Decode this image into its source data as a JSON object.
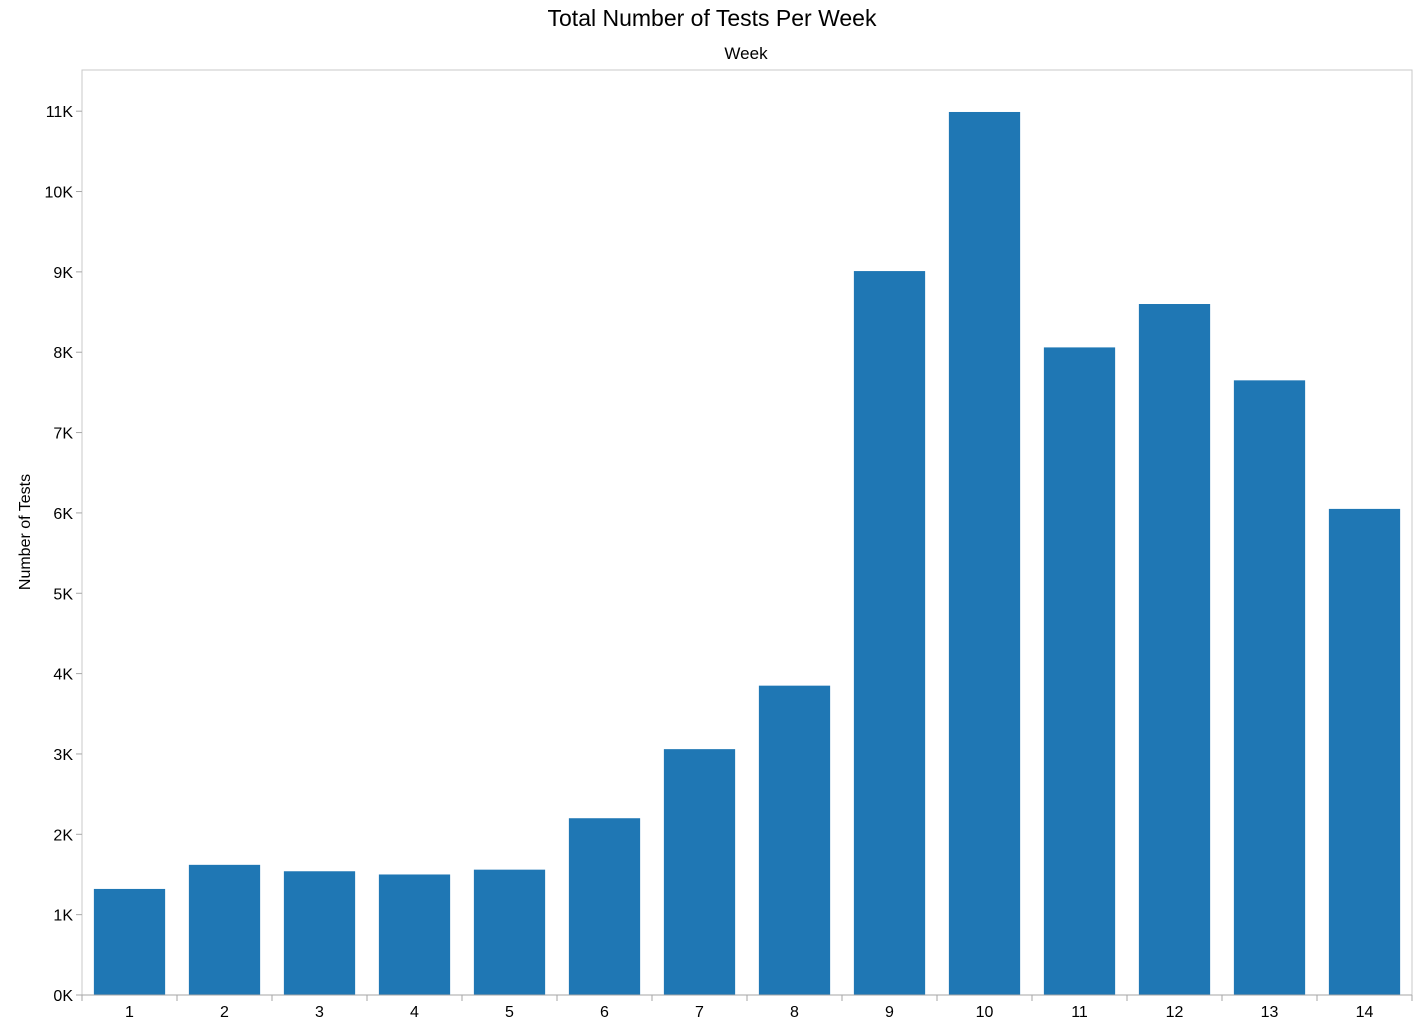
{
  "chart_data": {
    "type": "bar",
    "title": "Total Number of Tests Per Week",
    "column_header": "Week",
    "xlabel": "",
    "ylabel": "Number of Tests",
    "categories": [
      "1",
      "2",
      "3",
      "4",
      "5",
      "6",
      "7",
      "8",
      "9",
      "10",
      "11",
      "12",
      "13",
      "14"
    ],
    "values": [
      1320,
      1620,
      1540,
      1500,
      1560,
      2200,
      3060,
      3850,
      9010,
      10990,
      8060,
      8600,
      7650,
      6050
    ],
    "ylim": [
      0,
      11500
    ],
    "y_ticks": [
      0,
      1000,
      2000,
      3000,
      4000,
      5000,
      6000,
      7000,
      8000,
      9000,
      10000,
      11000
    ],
    "y_tick_labels": [
      "0K",
      "1K",
      "2K",
      "3K",
      "4K",
      "5K",
      "6K",
      "7K",
      "8K",
      "9K",
      "10K",
      "11K"
    ],
    "bar_color": "#1f77b4",
    "grid": false,
    "legend": "none"
  }
}
